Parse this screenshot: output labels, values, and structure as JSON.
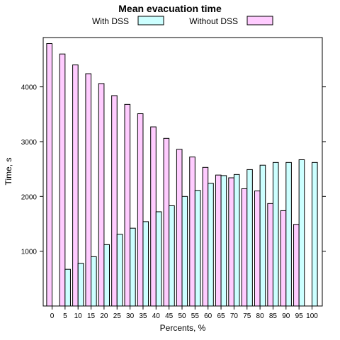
{
  "chart_data": {
    "type": "bar",
    "title": "Mean evacuation time",
    "xlabel": "Percents, %",
    "ylabel": "Time, s",
    "ylim": [
      0,
      4900
    ],
    "yticks": [
      1000,
      2000,
      3000,
      4000
    ],
    "grid": false,
    "legend_position": "top",
    "categories": [
      "0",
      "5",
      "10",
      "15",
      "20",
      "25",
      "30",
      "35",
      "40",
      "45",
      "50",
      "55",
      "60",
      "65",
      "70",
      "75",
      "80",
      "85",
      "90",
      "95",
      "100"
    ],
    "series": [
      {
        "name": "With DSS",
        "color": "#ccffff",
        "values": [
          null,
          670,
          780,
          900,
          1120,
          1310,
          1420,
          1540,
          1720,
          1830,
          2000,
          2110,
          2240,
          2380,
          2400,
          2490,
          2570,
          2620,
          2620,
          2670,
          2620
        ]
      },
      {
        "name": "Without DSS",
        "color": "#ffccff",
        "values": [
          4790,
          4600,
          4400,
          4240,
          4060,
          3840,
          3680,
          3510,
          3270,
          3060,
          2860,
          2720,
          2530,
          2390,
          2340,
          2140,
          2100,
          1870,
          1740,
          1490,
          null
        ]
      }
    ]
  }
}
